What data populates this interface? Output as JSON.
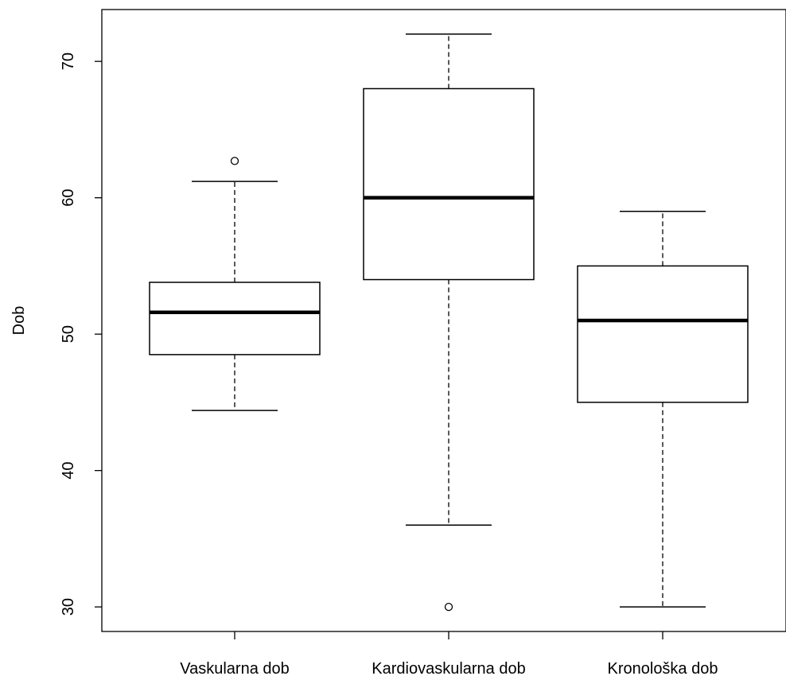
{
  "chart_data": {
    "type": "box",
    "title": "",
    "xlabel": "",
    "ylabel": "Dob",
    "ylim": [
      28.2,
      73.8
    ],
    "yticks": [
      30,
      40,
      50,
      60,
      70
    ],
    "categories": [
      "Vaskularna dob",
      "Kardiovaskularna dob",
      "Kronološka dob"
    ],
    "boxes": [
      {
        "name": "Vaskularna dob",
        "whisker_low": 44.4,
        "q1": 48.5,
        "median": 51.6,
        "q3": 53.8,
        "whisker_high": 61.2,
        "outliers": [
          62.7
        ]
      },
      {
        "name": "Kardiovaskularna dob",
        "whisker_low": 36,
        "q1": 54,
        "median": 60,
        "q3": 68,
        "whisker_high": 72,
        "outliers": [
          30
        ]
      },
      {
        "name": "Kronološka dob",
        "whisker_low": 30,
        "q1": 45,
        "median": 51,
        "q3": 55,
        "whisker_high": 59,
        "outliers": []
      }
    ],
    "grid": false,
    "legend": "none"
  }
}
